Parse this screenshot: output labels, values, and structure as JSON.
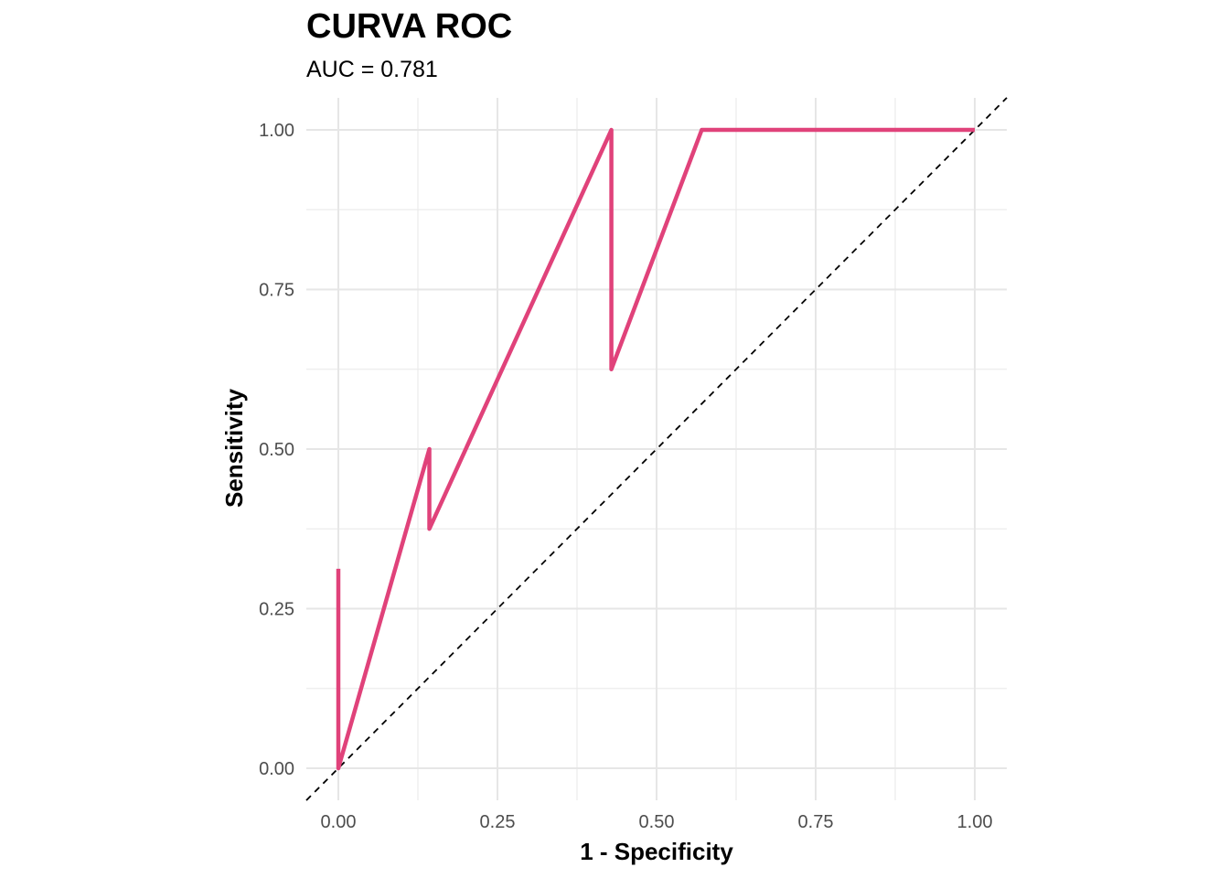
{
  "chart_data": {
    "type": "line",
    "title": "CURVA ROC",
    "subtitle": "AUC = 0.781",
    "xlabel": "1 - Specificity",
    "ylabel": "Sensitivity",
    "xlim": [
      0,
      1
    ],
    "ylim": [
      0,
      1
    ],
    "x_ticks": [
      "0.00",
      "0.25",
      "0.50",
      "0.75",
      "1.00"
    ],
    "y_ticks": [
      "0.00",
      "0.25",
      "0.50",
      "0.75",
      "1.00"
    ],
    "grid": true,
    "series": [
      {
        "color": "#e0427a",
        "x": [
          0.0,
          0.0,
          0.143,
          0.143,
          0.429,
          0.429,
          0.571,
          1.0
        ],
        "y": [
          0.3125,
          0.0,
          0.5,
          0.375,
          1.0,
          0.625,
          1.0,
          1.0
        ]
      }
    ],
    "reference_line": {
      "x": [
        0,
        1
      ],
      "y": [
        0,
        1
      ],
      "style": "dashed",
      "color": "#000000"
    }
  }
}
